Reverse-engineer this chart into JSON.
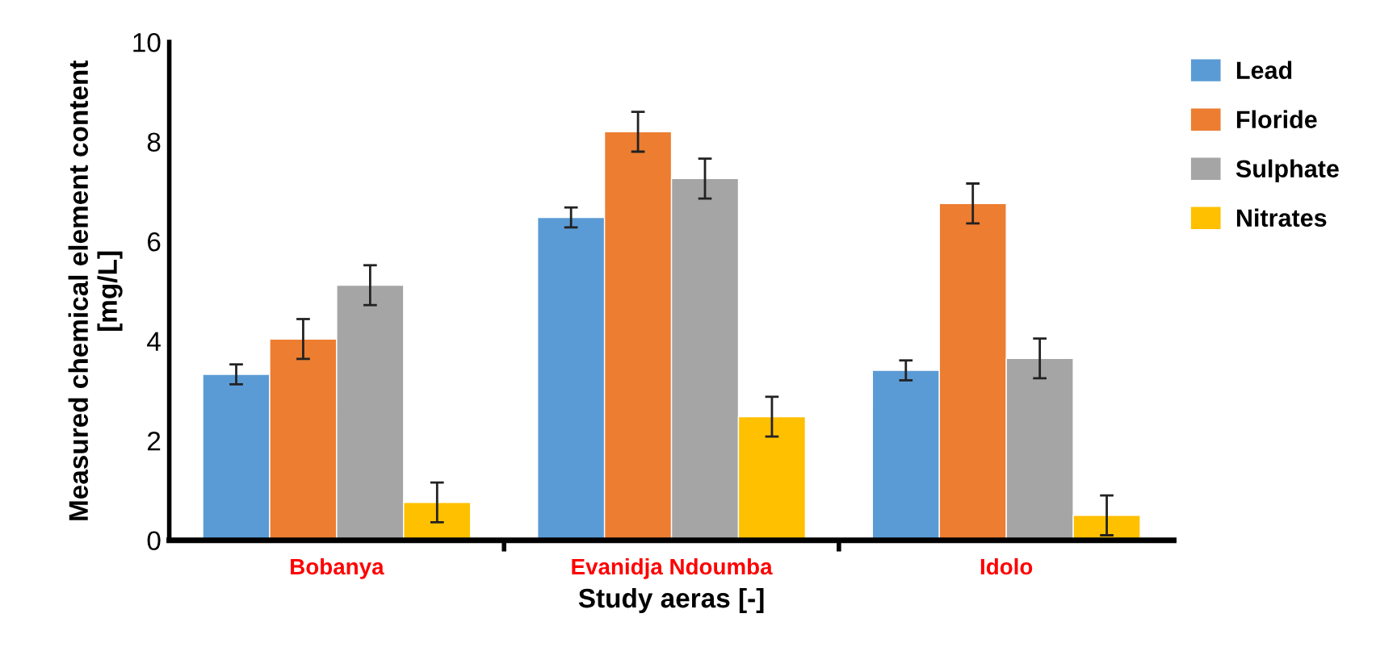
{
  "chart_data": {
    "type": "bar",
    "xlabel": "Study aeras [-]",
    "ylabel": "Measured chemical element content\n[mg/L]",
    "categories": [
      "Bobanya",
      "Evanidja Ndoumba",
      "Idolo"
    ],
    "series": [
      {
        "name": "Lead",
        "color": "#5b9bd5",
        "values": [
          3.33,
          6.48,
          3.41
        ],
        "errors": [
          0.2,
          0.2,
          0.2
        ]
      },
      {
        "name": "Floride",
        "color": "#ed7d31",
        "values": [
          4.04,
          8.2,
          6.76
        ],
        "errors": [
          0.4,
          0.4,
          0.4
        ]
      },
      {
        "name": "Sulphate",
        "color": "#a5a5a5",
        "values": [
          5.12,
          7.26,
          3.65
        ],
        "errors": [
          0.4,
          0.4,
          0.4
        ]
      },
      {
        "name": "Nitrates",
        "color": "#ffc000",
        "values": [
          0.76,
          2.48,
          0.5
        ],
        "errors": [
          0.4,
          0.4,
          0.4
        ]
      }
    ],
    "ylim": [
      0,
      10
    ],
    "yticks": [
      0,
      2,
      4,
      6,
      8,
      10
    ],
    "grid": false,
    "legend": "top right"
  }
}
